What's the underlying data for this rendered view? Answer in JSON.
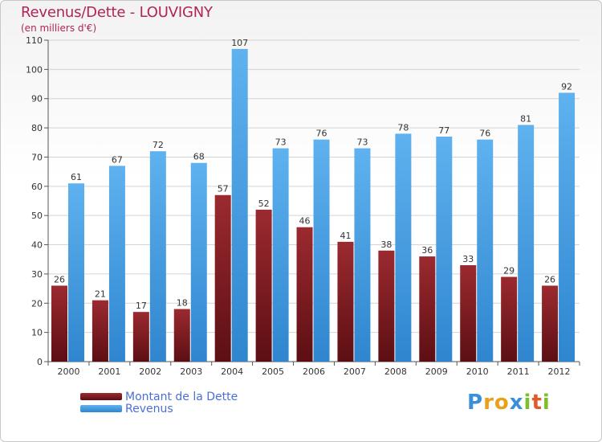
{
  "header": {
    "title": "Revenus/Dette - LOUVIGNY",
    "subtitle": "(en milliers d'€)"
  },
  "chart_data": {
    "type": "bar",
    "categories": [
      "2000",
      "2001",
      "2002",
      "2003",
      "2004",
      "2005",
      "2006",
      "2007",
      "2008",
      "2009",
      "2010",
      "2011",
      "2012"
    ],
    "series": [
      {
        "name": "Montant de la Dette",
        "color": "#7a1a1f",
        "values": [
          26,
          21,
          17,
          18,
          57,
          52,
          46,
          41,
          38,
          36,
          33,
          29,
          26
        ]
      },
      {
        "name": "Revenus",
        "color": "#4aa3e6",
        "values": [
          61,
          67,
          72,
          68,
          107,
          73,
          76,
          73,
          78,
          77,
          76,
          81,
          92
        ]
      }
    ],
    "ylim": [
      0,
      110
    ],
    "yticks": [
      "0",
      "10",
      "20",
      "30",
      "40",
      "50",
      "60",
      "70",
      "80",
      "90",
      "100",
      "110"
    ],
    "grid": true,
    "legend_position": "bottom-left"
  },
  "legend": {
    "items": [
      {
        "label": "Montant de la Dette",
        "color": "#7a1a1f"
      },
      {
        "label": "Revenus",
        "color": "#4aa3e6"
      }
    ]
  },
  "logo": {
    "letters": [
      "P",
      "r",
      "o",
      "x",
      "i",
      "t",
      "i"
    ],
    "colors": [
      "#3a8fd8",
      "#e8a11a",
      "#e8a11a",
      "#3a8fd8",
      "#7cbf2a",
      "#e05a2a",
      "#7cbf2a"
    ]
  }
}
